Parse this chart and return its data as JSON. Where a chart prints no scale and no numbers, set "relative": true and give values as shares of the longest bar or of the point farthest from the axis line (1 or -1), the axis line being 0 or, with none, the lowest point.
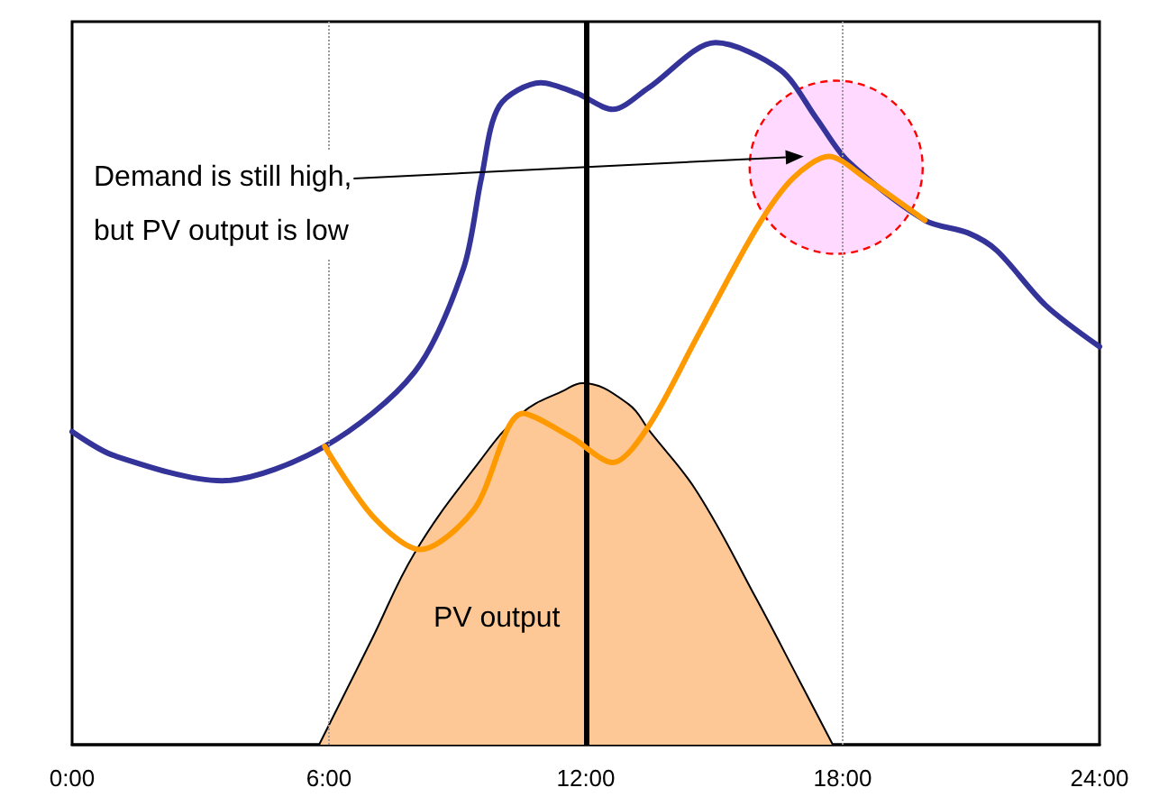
{
  "chart_data": {
    "type": "line",
    "relative": true,
    "xlim": [
      0,
      24
    ],
    "xticks": [
      {
        "value": 0,
        "label": "0:00"
      },
      {
        "value": 6,
        "label": "6:00"
      },
      {
        "value": 12,
        "label": "12:00"
      },
      {
        "value": 18,
        "label": "18:00"
      },
      {
        "value": 24,
        "label": "24:00"
      }
    ],
    "series": [
      {
        "type": "area",
        "name": "PV output",
        "color": "#fdc896",
        "x": [
          5.77,
          7,
          8,
          9.4,
          10.5,
          11.5,
          11.92,
          13,
          13.5,
          14.6,
          16,
          17,
          17.77
        ],
        "values": [
          0,
          0.15,
          0.273,
          0.394,
          0.472,
          0.505,
          0.515,
          0.485,
          0.446,
          0.36,
          0.206,
          0.09,
          0
        ]
      },
      {
        "color": "#333399",
        "x": [
          0,
          0.97,
          3.5,
          5.9,
          8,
          9.14,
          9.56,
          9.98,
          10.95,
          11.79,
          12.63,
          13.47,
          15.03,
          16.55,
          17.39,
          18.11,
          19.92,
          20.93,
          21.6,
          22.74,
          24
        ],
        "values": [
          0.446,
          0.412,
          0.376,
          0.425,
          0.531,
          0.678,
          0.807,
          0.91,
          0.943,
          0.928,
          0.905,
          0.936,
          1,
          0.961,
          0.892,
          0.832,
          0.747,
          0.729,
          0.704,
          0.626,
          0.567
        ]
      },
      {
        "color": "#ff9900",
        "x": [
          5.9,
          7.03,
          8.13,
          9.39,
          10.53,
          11.66,
          12.63,
          13.47,
          14.61,
          16,
          16.84,
          17.68,
          18.53,
          19.92
        ],
        "values": [
          0.425,
          0.325,
          0.278,
          0.335,
          0.472,
          0.438,
          0.402,
          0.454,
          0.582,
          0.737,
          0.807,
          0.838,
          0.807,
          0.747
        ]
      }
    ],
    "ref_lines": [
      {
        "axis": "x",
        "value": 6,
        "color": "#999999",
        "line_style": "dotted"
      },
      {
        "axis": "x",
        "value": 12,
        "color": "#000000",
        "line_style": "solid"
      },
      {
        "axis": "x",
        "value": 18,
        "color": "#999999",
        "line_style": "dotted"
      }
    ],
    "annotations": [
      "Demand is still high,\nbut PV output is low"
    ],
    "grid": false,
    "legend": false,
    "marker": "none",
    "line_style": "solid"
  }
}
